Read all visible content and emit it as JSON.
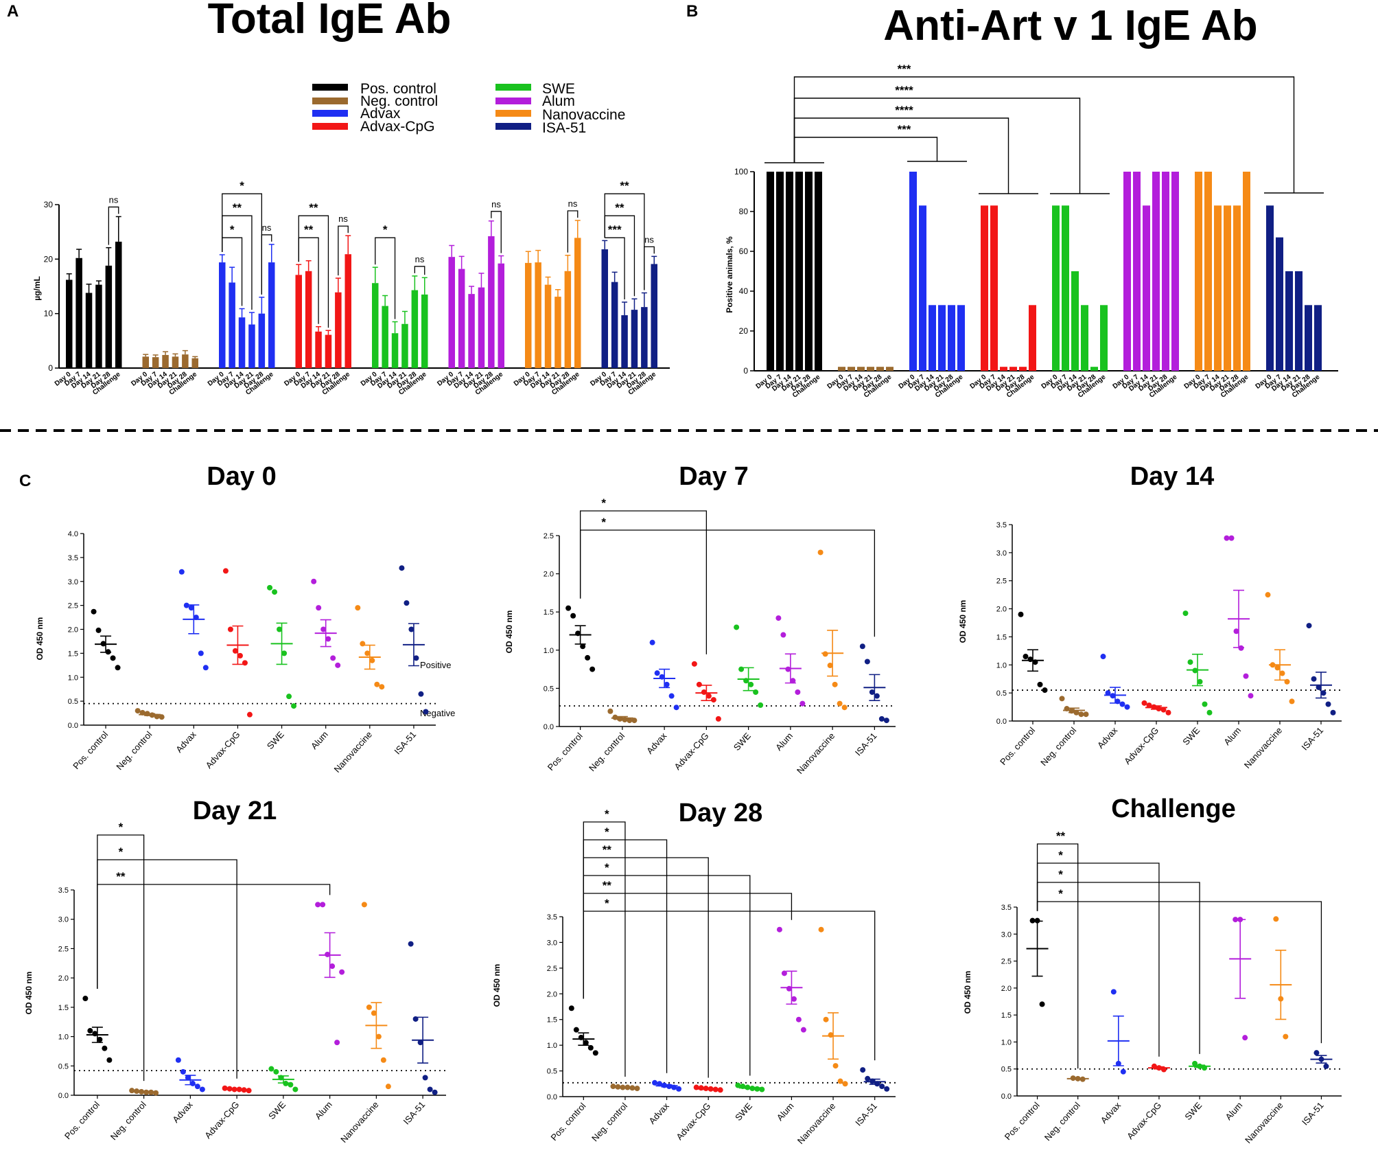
{
  "panel_letters": {
    "a": "A",
    "b": "B",
    "c": "C"
  },
  "colors": {
    "pos": "#000000",
    "neg": "#9b6a2f",
    "advax": "#1f2ff2",
    "advax_cpg": "#f21616",
    "swe": "#19c21f",
    "alum": "#b31edb",
    "nanovaccine": "#f58a16",
    "isa": "#101f84"
  },
  "groups": [
    "Pos. control",
    "Neg. control",
    "Advax",
    "Advax-CpG",
    "SWE",
    "Alum",
    "Nanovaccine",
    "ISA-51"
  ],
  "timepoints": [
    "Day 0",
    "Day 7",
    "Day 14",
    "Day 21",
    "Day 28",
    "Challenge"
  ],
  "legend": {
    "items": [
      "Pos. control",
      "Neg. control",
      "Advax",
      "Advax-CpG",
      "SWE",
      "Alum",
      "Nanovaccine",
      "ISA-51"
    ]
  },
  "threshold_labels": {
    "positive": "Positive",
    "negative": "Negative"
  },
  "chart_data": [
    {
      "id": "A",
      "type": "bar",
      "title": "Total IgE Ab",
      "ylabel": "µg/mL",
      "ylim": [
        0,
        30
      ],
      "yticks": [
        0,
        10,
        20,
        30
      ],
      "error_bars": true,
      "series": [
        {
          "name": "Pos. control",
          "values": [
            16.2,
            20.2,
            13.8,
            15.3,
            18.8,
            23.2
          ],
          "errors": [
            1.1,
            1.6,
            1.6,
            0.7,
            3.3,
            4.6
          ]
        },
        {
          "name": "Neg. control",
          "values": [
            2.1,
            2.0,
            2.4,
            2.1,
            2.5,
            1.8
          ],
          "errors": [
            0.4,
            0.4,
            0.6,
            0.5,
            0.7,
            0.3
          ]
        },
        {
          "name": "Advax",
          "values": [
            19.4,
            15.7,
            9.3,
            8.0,
            10.0,
            19.4
          ],
          "errors": [
            1.4,
            2.8,
            1.6,
            2.2,
            3.0,
            3.3
          ]
        },
        {
          "name": "Advax-CpG",
          "values": [
            17.1,
            17.8,
            6.7,
            6.1,
            13.9,
            20.9
          ],
          "errors": [
            1.9,
            1.9,
            0.9,
            0.8,
            2.6,
            3.4
          ]
        },
        {
          "name": "SWE",
          "values": [
            15.6,
            11.4,
            6.4,
            8.1,
            14.3,
            13.5
          ],
          "errors": [
            2.9,
            1.9,
            2.1,
            2.3,
            2.6,
            3.1
          ]
        },
        {
          "name": "Alum",
          "values": [
            20.4,
            18.2,
            13.6,
            14.8,
            24.2,
            19.2
          ],
          "errors": [
            2.1,
            2.3,
            1.4,
            2.6,
            2.8,
            1.4
          ]
        },
        {
          "name": "Nanovaccine",
          "values": [
            19.3,
            19.4,
            15.3,
            13.1,
            17.8,
            23.9
          ],
          "errors": [
            2.1,
            2.2,
            1.4,
            1.3,
            2.9,
            3.2
          ]
        },
        {
          "name": "ISA-51",
          "values": [
            21.8,
            15.8,
            9.7,
            10.7,
            11.2,
            19.1
          ],
          "errors": [
            1.6,
            1.8,
            2.4,
            2.0,
            2.6,
            1.4
          ]
        }
      ],
      "annotations": [
        {
          "group": "Pos. control",
          "from": "Day 28",
          "to": "Challenge",
          "label": "ns"
        },
        {
          "group": "Advax",
          "from": "Day 0",
          "to": "Day 14",
          "label": "*"
        },
        {
          "group": "Advax",
          "from": "Day 0",
          "to": "Day 21",
          "label": "**"
        },
        {
          "group": "Advax",
          "from": "Day 0",
          "to": "Day 28",
          "label": "*"
        },
        {
          "group": "Advax",
          "from": "Day 28",
          "to": "Challenge",
          "label": "ns"
        },
        {
          "group": "Advax-CpG",
          "from": "Day 0",
          "to": "Day 14",
          "label": "**"
        },
        {
          "group": "Advax-CpG",
          "from": "Day 0",
          "to": "Day 21",
          "label": "**"
        },
        {
          "group": "Advax-CpG",
          "from": "Day 28",
          "to": "Challenge",
          "label": "ns"
        },
        {
          "group": "SWE",
          "from": "Day 0",
          "to": "Day 14",
          "label": "*"
        },
        {
          "group": "SWE",
          "from": "Day 28",
          "to": "Challenge",
          "label": "ns"
        },
        {
          "group": "Alum",
          "from": "Day 28",
          "to": "Challenge",
          "label": "ns"
        },
        {
          "group": "Nanovaccine",
          "from": "Day 28",
          "to": "Challenge",
          "label": "ns"
        },
        {
          "group": "ISA-51",
          "from": "Day 0",
          "to": "Day 14",
          "label": "***"
        },
        {
          "group": "ISA-51",
          "from": "Day 0",
          "to": "Day 21",
          "label": "**"
        },
        {
          "group": "ISA-51",
          "from": "Day 0",
          "to": "Day 28",
          "label": "**"
        },
        {
          "group": "ISA-51",
          "from": "Day 28",
          "to": "Challenge",
          "label": "ns"
        }
      ]
    },
    {
      "id": "B",
      "type": "bar",
      "title": "Anti-Art v 1 IgE Ab",
      "ylabel": "Positive animals, %",
      "ylim": [
        0,
        100
      ],
      "yticks": [
        0,
        20,
        40,
        60,
        80,
        100
      ],
      "series": [
        {
          "name": "Pos. control",
          "values": [
            100,
            100,
            100,
            100,
            100,
            100
          ]
        },
        {
          "name": "Neg. control",
          "values": [
            2,
            2,
            2,
            2,
            2,
            2
          ]
        },
        {
          "name": "Advax",
          "values": [
            100,
            83,
            33,
            33,
            33,
            33
          ]
        },
        {
          "name": "Advax-CpG",
          "values": [
            83,
            83,
            2,
            2,
            2,
            33
          ]
        },
        {
          "name": "SWE",
          "values": [
            83,
            83,
            50,
            33,
            2,
            33
          ]
        },
        {
          "name": "Alum",
          "values": [
            100,
            100,
            83,
            100,
            100,
            100
          ]
        },
        {
          "name": "Nanovaccine",
          "values": [
            100,
            100,
            83,
            83,
            83,
            100
          ]
        },
        {
          "name": "ISA-51",
          "values": [
            83,
            67,
            50,
            50,
            33,
            33
          ]
        }
      ],
      "annotations": [
        {
          "from": "Pos. control",
          "to": "Advax",
          "label": "***"
        },
        {
          "from": "Pos. control",
          "to": "Advax-CpG",
          "label": "****"
        },
        {
          "from": "Pos. control",
          "to": "SWE",
          "label": "****"
        },
        {
          "from": "Pos. control",
          "to": "ISA-51",
          "label": "***"
        }
      ]
    },
    {
      "id": "C-Day0",
      "type": "scatter",
      "title": "Day 0",
      "ylabel": "OD 450 nm",
      "ylim": [
        0,
        4.0
      ],
      "yticks": [
        0,
        0.5,
        1.0,
        1.5,
        2.0,
        2.5,
        3.0,
        3.5,
        4.0
      ],
      "threshold": 0.45,
      "points": [
        [
          2.37,
          1.98,
          1.7,
          1.53,
          1.4,
          1.2
        ],
        [
          0.3,
          0.26,
          0.24,
          0.21,
          0.18,
          0.17
        ],
        [
          3.2,
          2.5,
          2.45,
          2.25,
          1.5,
          1.2
        ],
        [
          3.22,
          2.0,
          1.55,
          1.45,
          1.3,
          0.22
        ],
        [
          2.87,
          2.78,
          2.0,
          1.5,
          0.6,
          0.4
        ],
        [
          3.0,
          2.45,
          2.0,
          1.8,
          1.4,
          1.25
        ],
        [
          2.45,
          1.7,
          1.5,
          1.35,
          0.85,
          0.8
        ],
        [
          3.28,
          2.55,
          2.0,
          1.4,
          0.65,
          0.28
        ]
      ],
      "means": [
        1.69,
        0.22,
        2.21,
        1.67,
        1.7,
        1.92,
        1.42,
        1.68
      ],
      "sems": [
        0.17,
        0.02,
        0.3,
        0.4,
        0.43,
        0.28,
        0.25,
        0.44
      ],
      "annotations": []
    },
    {
      "id": "C-Day7",
      "type": "scatter",
      "title": "Day 7",
      "ylabel": "OD 450 nm",
      "ylim": [
        0,
        2.5
      ],
      "yticks": [
        0,
        0.5,
        1.0,
        1.5,
        2.0,
        2.5
      ],
      "threshold": 0.27,
      "points": [
        [
          1.55,
          1.45,
          1.22,
          1.05,
          0.9,
          0.75
        ],
        [
          0.2,
          0.12,
          0.1,
          0.09,
          0.08,
          0.08
        ],
        [
          1.1,
          0.7,
          0.65,
          0.55,
          0.4,
          0.25
        ],
        [
          0.82,
          0.55,
          0.45,
          0.4,
          0.35,
          0.1
        ],
        [
          1.3,
          0.75,
          0.6,
          0.55,
          0.45,
          0.28
        ],
        [
          1.42,
          1.2,
          0.75,
          0.6,
          0.45,
          0.3
        ],
        [
          2.28,
          0.95,
          0.8,
          0.55,
          0.3,
          0.25
        ],
        [
          1.05,
          0.85,
          0.45,
          0.4,
          0.1,
          0.08
        ]
      ],
      "means": [
        1.2,
        0.11,
        0.63,
        0.44,
        0.62,
        0.76,
        0.96,
        0.51
      ],
      "sems": [
        0.12,
        0.02,
        0.12,
        0.1,
        0.15,
        0.19,
        0.3,
        0.17
      ],
      "annotations": [
        {
          "from": "Pos. control",
          "to": "Advax-CpG",
          "label": "*"
        },
        {
          "from": "Pos. control",
          "to": "ISA-51",
          "label": "*"
        }
      ]
    },
    {
      "id": "C-Day14",
      "type": "scatter",
      "title": "Day 14",
      "ylabel": "OD 450 nm",
      "ylim": [
        0,
        3.5
      ],
      "yticks": [
        0,
        0.5,
        1.0,
        1.5,
        2.0,
        2.5,
        3.0,
        3.5
      ],
      "threshold": 0.55,
      "points": [
        [
          1.9,
          1.15,
          1.1,
          1.05,
          0.65,
          0.55
        ],
        [
          0.4,
          0.22,
          0.18,
          0.15,
          0.12,
          0.12
        ],
        [
          1.15,
          0.5,
          0.45,
          0.35,
          0.3,
          0.25
        ],
        [
          0.32,
          0.28,
          0.25,
          0.22,
          0.2,
          0.15
        ],
        [
          1.92,
          1.05,
          0.9,
          0.7,
          0.3,
          0.15
        ],
        [
          3.26,
          3.26,
          1.6,
          1.3,
          0.8,
          0.45
        ],
        [
          2.25,
          1.0,
          0.95,
          0.85,
          0.7,
          0.35
        ],
        [
          1.7,
          0.75,
          0.6,
          0.5,
          0.3,
          0.15
        ]
      ],
      "means": [
        1.08,
        0.19,
        0.46,
        0.24,
        0.91,
        1.82,
        1.0,
        0.64
      ],
      "sems": [
        0.19,
        0.04,
        0.14,
        0.03,
        0.28,
        0.51,
        0.27,
        0.23
      ],
      "annotations": []
    },
    {
      "id": "C-Day21",
      "type": "scatter",
      "title": "Day 21",
      "ylabel": "OD 450 nm",
      "ylim": [
        0,
        3.5
      ],
      "yticks": [
        0,
        0.5,
        1.0,
        1.5,
        2.0,
        2.5,
        3.0,
        3.5
      ],
      "threshold": 0.42,
      "points": [
        [
          1.65,
          1.1,
          1.05,
          0.95,
          0.8,
          0.6
        ],
        [
          0.08,
          0.07,
          0.06,
          0.05,
          0.05,
          0.04
        ],
        [
          0.6,
          0.4,
          0.3,
          0.2,
          0.15,
          0.1
        ],
        [
          0.12,
          0.11,
          0.1,
          0.1,
          0.09,
          0.08
        ],
        [
          0.45,
          0.4,
          0.3,
          0.2,
          0.18,
          0.1
        ],
        [
          3.25,
          3.25,
          2.4,
          2.2,
          0.9,
          2.1
        ],
        [
          3.25,
          1.5,
          1.4,
          1.0,
          0.6,
          0.15
        ],
        [
          2.58,
          1.3,
          0.9,
          0.3,
          0.1,
          0.05
        ]
      ],
      "means": [
        1.03,
        0.06,
        0.26,
        0.1,
        0.27,
        2.39,
        1.19,
        0.94
      ],
      "sems": [
        0.13,
        0.01,
        0.08,
        0.01,
        0.06,
        0.38,
        0.39,
        0.39
      ],
      "annotations": [
        {
          "from": "Pos. control",
          "to": "Neg. control",
          "label": "*"
        },
        {
          "from": "Pos. control",
          "to": "Advax-CpG",
          "label": "*"
        },
        {
          "from": "Pos. control",
          "to": "Alum",
          "label": "**"
        }
      ]
    },
    {
      "id": "C-Day28",
      "type": "scatter",
      "title": "Day 28",
      "ylabel": "OD 450 nm",
      "ylim": [
        0,
        3.5
      ],
      "yticks": [
        0,
        0.5,
        1.0,
        1.5,
        2.0,
        2.5,
        3.0,
        3.5
      ],
      "threshold": 0.27,
      "points": [
        [
          1.72,
          1.3,
          1.15,
          1.05,
          0.95,
          0.85
        ],
        [
          0.2,
          0.19,
          0.18,
          0.18,
          0.17,
          0.16
        ],
        [
          0.27,
          0.25,
          0.22,
          0.2,
          0.18,
          0.15
        ],
        [
          0.18,
          0.17,
          0.16,
          0.15,
          0.14,
          0.13
        ],
        [
          0.22,
          0.2,
          0.18,
          0.16,
          0.15,
          0.14
        ],
        [
          3.25,
          2.4,
          2.1,
          1.9,
          1.5,
          1.3
        ],
        [
          3.25,
          1.5,
          1.2,
          0.6,
          0.3,
          0.25
        ],
        [
          0.52,
          0.35,
          0.3,
          0.25,
          0.2,
          0.15
        ]
      ],
      "means": [
        1.12,
        0.18,
        0.21,
        0.15,
        0.17,
        2.12,
        1.18,
        0.29
      ],
      "sems": [
        0.12,
        0.01,
        0.02,
        0.01,
        0.01,
        0.32,
        0.45,
        0.05
      ],
      "annotations": [
        {
          "from": "Pos. control",
          "to": "Neg. control",
          "label": "*"
        },
        {
          "from": "Pos. control",
          "to": "Advax",
          "label": "*"
        },
        {
          "from": "Pos. control",
          "to": "Advax-CpG",
          "label": "**"
        },
        {
          "from": "Pos. control",
          "to": "SWE",
          "label": "*"
        },
        {
          "from": "Pos. control",
          "to": "Alum",
          "label": "**"
        },
        {
          "from": "Pos. control",
          "to": "ISA-51",
          "label": "*"
        }
      ]
    },
    {
      "id": "C-Challenge",
      "type": "scatter",
      "title": "Challenge",
      "ylabel": "OD 450 nm",
      "ylim": [
        0,
        3.5
      ],
      "yticks": [
        0,
        0.5,
        1.0,
        1.5,
        2.0,
        2.5,
        3.0,
        3.5
      ],
      "threshold": 0.5,
      "points": [
        [
          3.25,
          3.25,
          1.7
        ],
        [
          0.33,
          0.32,
          0.31
        ],
        [
          1.93,
          0.6,
          0.45
        ],
        [
          0.55,
          0.52,
          0.49
        ],
        [
          0.6,
          0.55,
          0.52
        ],
        [
          3.27,
          3.27,
          1.08
        ],
        [
          3.28,
          1.8,
          1.1
        ],
        [
          0.8,
          0.68,
          0.55
        ]
      ],
      "means": [
        2.73,
        0.32,
        1.02,
        0.52,
        0.55,
        2.54,
        2.06,
        0.68
      ],
      "sems": [
        0.51,
        0.01,
        0.46,
        0.02,
        0.02,
        0.73,
        0.64,
        0.07
      ],
      "annotations": [
        {
          "from": "Pos. control",
          "to": "Neg. control",
          "label": "**"
        },
        {
          "from": "Pos. control",
          "to": "Advax-CpG",
          "label": "*"
        },
        {
          "from": "Pos. control",
          "to": "SWE",
          "label": "*"
        },
        {
          "from": "Pos. control",
          "to": "ISA-51",
          "label": "*"
        }
      ]
    }
  ]
}
